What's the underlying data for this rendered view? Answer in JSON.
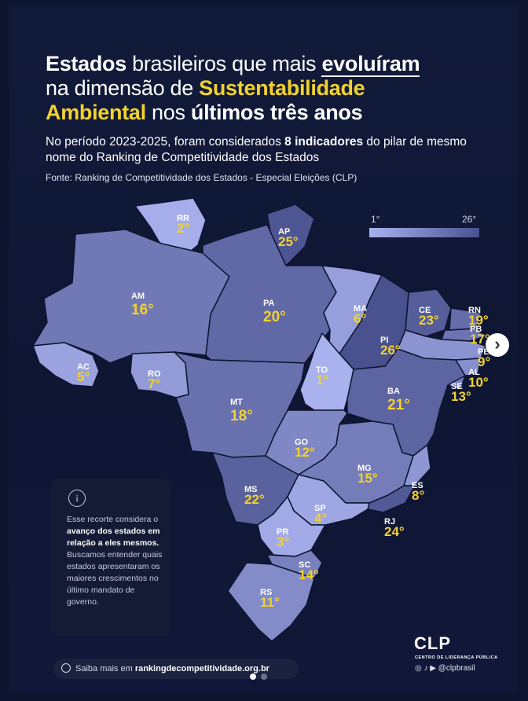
{
  "header": {
    "title_parts": {
      "p1": "Estados",
      "p2": " brasileiros que mais ",
      "p3": "evoluíram",
      "p4": "na dimensão de ",
      "p5": "Sustentabilidade",
      "p6": "Ambiental",
      "p7": " nos ",
      "p8": "últimos três anos"
    },
    "subtitle_parts": {
      "s1": "No período 2023-2025, foram considerados ",
      "s2": "8 indicadores",
      "s3": " do pilar de mesmo nome do Ranking de Competitividade dos Estados"
    },
    "source": "Fonte: Ranking de Competitividade dos Estados - Especial Eleições (CLP)"
  },
  "legend": {
    "min_label": "1°",
    "max_label": "26°",
    "color_min": "#a9b2ee",
    "color_max": "#4a518f"
  },
  "states": [
    {
      "code": "RR",
      "rank": "2°",
      "rank_value": 2
    },
    {
      "code": "AP",
      "rank": "25°",
      "rank_value": 25
    },
    {
      "code": "AM",
      "rank": "16°",
      "rank_value": 16
    },
    {
      "code": "PA",
      "rank": "20°",
      "rank_value": 20
    },
    {
      "code": "MA",
      "rank": "6°",
      "rank_value": 6
    },
    {
      "code": "CE",
      "rank": "23°",
      "rank_value": 23
    },
    {
      "code": "RN",
      "rank": "19°",
      "rank_value": 19
    },
    {
      "code": "PB",
      "rank": "17°",
      "rank_value": 17
    },
    {
      "code": "PE",
      "rank": "9°",
      "rank_value": 9
    },
    {
      "code": "AL",
      "rank": "10°",
      "rank_value": 10
    },
    {
      "code": "SE",
      "rank": "13°",
      "rank_value": 13
    },
    {
      "code": "PI",
      "rank": "26°",
      "rank_value": 26
    },
    {
      "code": "TO",
      "rank": "1°",
      "rank_value": 1
    },
    {
      "code": "BA",
      "rank": "21°",
      "rank_value": 21
    },
    {
      "code": "AC",
      "rank": "5°",
      "rank_value": 5
    },
    {
      "code": "RO",
      "rank": "7°",
      "rank_value": 7
    },
    {
      "code": "MT",
      "rank": "18°",
      "rank_value": 18
    },
    {
      "code": "GO",
      "rank": "12°",
      "rank_value": 12
    },
    {
      "code": "MG",
      "rank": "15°",
      "rank_value": 15
    },
    {
      "code": "ES",
      "rank": "8°",
      "rank_value": 8
    },
    {
      "code": "RJ",
      "rank": "24°",
      "rank_value": 24
    },
    {
      "code": "MS",
      "rank": "22°",
      "rank_value": 22
    },
    {
      "code": "SP",
      "rank": "4°",
      "rank_value": 4
    },
    {
      "code": "PR",
      "rank": "3°",
      "rank_value": 3
    },
    {
      "code": "SC",
      "rank": "14°",
      "rank_value": 14
    },
    {
      "code": "RS",
      "rank": "11°",
      "rank_value": 11
    }
  ],
  "note": {
    "icon": "info-icon",
    "t1": "Esse recorte considera o ",
    "t2": "avanço dos estados em relação a eles mesmos.",
    "t3": " Buscamos entender quais estados apresentaram os maiores crescimentos no último mandato de governo."
  },
  "footer": {
    "more_prefix": "Saiba mais em ",
    "more_link": "rankingdecompetitividade.org.br",
    "logo": "CLP",
    "logo_sub": "CENTRO DE LIDERANÇA PÚBLICA",
    "social": "@clpbrasil",
    "pager": {
      "total": 2,
      "active": 1
    }
  },
  "colors": {
    "background": "#0e1530",
    "highlight": "#f2d22e"
  }
}
